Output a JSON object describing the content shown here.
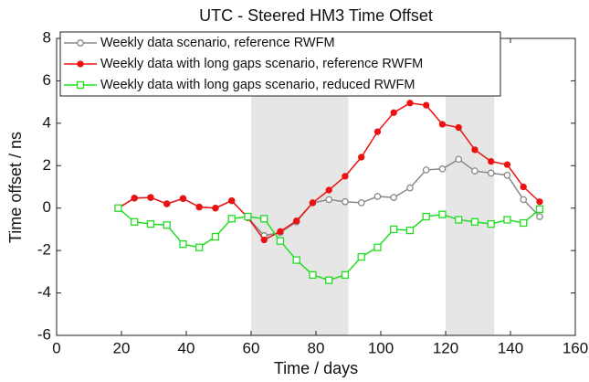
{
  "chart_data": {
    "type": "line",
    "title": "UTC - Steered HM3  Time Offset",
    "x_label": "Time / days",
    "y_label": "Time offset / ns",
    "xlim": [
      0,
      160
    ],
    "xticks": [
      0,
      20,
      40,
      60,
      80,
      100,
      120,
      140,
      160
    ],
    "ylim": [
      -6,
      8
    ],
    "yticks": [
      -6,
      -4,
      -2,
      0,
      2,
      4,
      6,
      8
    ],
    "shaded_regions": [
      [
        60,
        90
      ],
      [
        120,
        135
      ]
    ],
    "legend": "upper left",
    "x": [
      19,
      24,
      29,
      34,
      39,
      44,
      49,
      54,
      59,
      64,
      69,
      74,
      79,
      84,
      89,
      94,
      99,
      104,
      109,
      114,
      119,
      124,
      129,
      134,
      139,
      144,
      149
    ],
    "series": [
      {
        "name": "Weekly data scenario, reference RWFM",
        "color": "#888888",
        "marker": "open-circle",
        "values": [
          0,
          0.47,
          0.5,
          0.2,
          0.45,
          0.05,
          0.0,
          0.35,
          -0.45,
          -1.3,
          -1.15,
          -0.65,
          0.25,
          0.4,
          0.3,
          0.25,
          0.55,
          0.5,
          0.95,
          1.8,
          1.85,
          2.3,
          1.75,
          1.65,
          1.55,
          0.4,
          -0.4
        ]
      },
      {
        "name": "Weekly data with long gaps scenario, reference RWFM",
        "color": "#ee1111",
        "marker": "filled-circle",
        "values": [
          0,
          0.47,
          0.5,
          0.2,
          0.45,
          0.05,
          0.0,
          0.35,
          -0.45,
          -1.5,
          -1.1,
          -0.6,
          0.25,
          0.85,
          1.5,
          2.4,
          3.6,
          4.5,
          4.95,
          4.85,
          3.95,
          3.8,
          2.75,
          2.2,
          2.05,
          1.0,
          0.3
        ]
      },
      {
        "name": "Weekly data with long gaps scenario, reduced RWFM",
        "color": "#22dd22",
        "marker": "open-square",
        "values": [
          0,
          -0.65,
          -0.75,
          -0.8,
          -1.7,
          -1.85,
          -1.35,
          -0.5,
          -0.4,
          -0.5,
          -1.55,
          -2.45,
          -3.15,
          -3.4,
          -3.15,
          -2.3,
          -1.85,
          -1.0,
          -1.05,
          -0.4,
          -0.3,
          -0.55,
          -0.65,
          -0.75,
          -0.55,
          -0.7,
          -0.05
        ]
      }
    ]
  }
}
